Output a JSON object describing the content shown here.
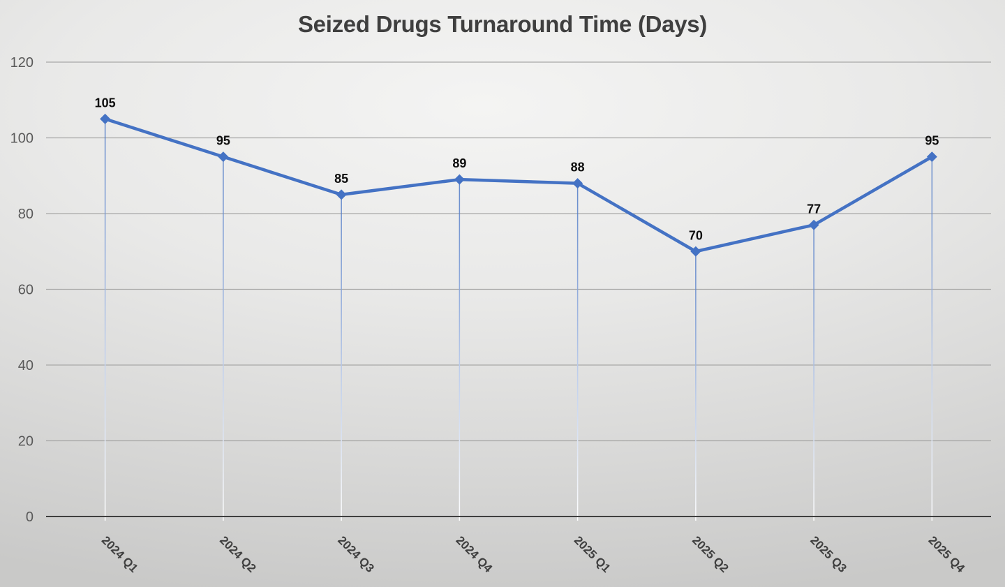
{
  "chart_data": {
    "type": "line",
    "title": "Seized Drugs Turnaround Time (Days)",
    "categories": [
      "2024 Q1",
      "2024 Q2",
      "2024 Q3",
      "2024 Q4",
      "2025 Q1",
      "2025 Q2",
      "2025 Q3",
      "2025 Q4"
    ],
    "values": [
      105,
      95,
      85,
      89,
      88,
      70,
      77,
      95
    ],
    "data_labels": [
      "105",
      "95",
      "85",
      "89",
      "88",
      "70",
      "77",
      "95"
    ],
    "xlabel": "",
    "ylabel": "",
    "ylim": [
      0,
      120
    ],
    "yticks": [
      0,
      20,
      40,
      60,
      80,
      100,
      120
    ],
    "grid": true,
    "legend_position": "none",
    "marker_shape": "diamond",
    "colors": {
      "line": "#4472C4",
      "marker": "#4472C4",
      "drop_line_top": "#4472C4",
      "drop_line_mid": "#BDCDEB",
      "drop_line_bottom": "#FFFFFF",
      "gridline": "#A8A8A7",
      "axis_line": "#3F3F3F",
      "title_text": "#3F3F3F",
      "y_tick_label": "#595959",
      "category_label": "#3F3F3F",
      "data_label": "#0D0D0D"
    }
  }
}
